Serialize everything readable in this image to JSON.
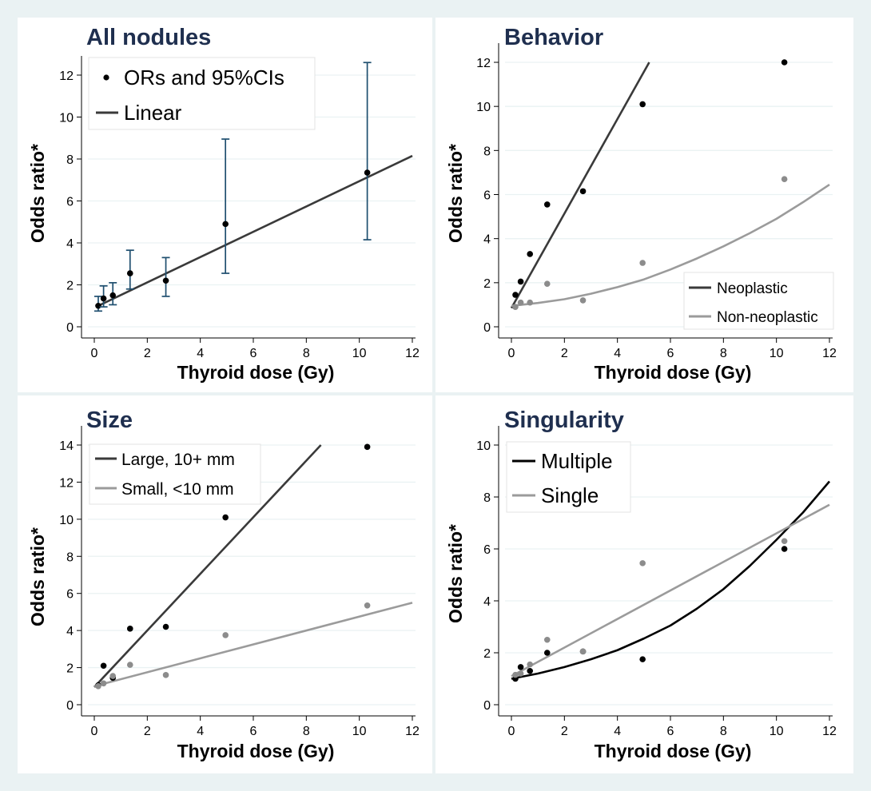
{
  "chart_data": [
    {
      "type": "scatter",
      "title": "All nodules",
      "xlabel": "Thyroid dose (Gy)",
      "ylabel": "Odds ratio*",
      "xlim": [
        0,
        12
      ],
      "ylim": [
        0,
        12
      ],
      "xticks": [
        "0",
        "2",
        "4",
        "6",
        "8",
        "10",
        "12"
      ],
      "yticks": [
        "0",
        "2",
        "4",
        "6",
        "8",
        "10",
        "12"
      ],
      "grid": true,
      "legend": "top-left",
      "series": [
        {
          "name": "ORs and 95%CIs",
          "kind": "points",
          "color": "#000000",
          "x": [
            0.15,
            0.35,
            0.7,
            1.35,
            2.7,
            4.95,
            10.3
          ],
          "y": [
            1.0,
            1.35,
            1.5,
            2.55,
            2.2,
            4.9,
            7.35
          ],
          "lower": [
            0.75,
            0.95,
            1.05,
            1.8,
            1.45,
            2.55,
            4.15
          ],
          "upper": [
            1.45,
            1.95,
            2.1,
            3.65,
            3.3,
            8.95,
            12.6
          ]
        },
        {
          "name": "Linear",
          "kind": "line",
          "color": "#3a3a3a",
          "x": [
            0.15,
            12.0
          ],
          "y": [
            1.0,
            8.15
          ]
        }
      ]
    },
    {
      "type": "scatter",
      "title": "Behavior",
      "xlabel": "Thyroid dose (Gy)",
      "ylabel": "Odds ratio*",
      "xlim": [
        0,
        12
      ],
      "ylim": [
        0,
        12
      ],
      "xticks": [
        "0",
        "2",
        "4",
        "6",
        "8",
        "10",
        "12"
      ],
      "yticks": [
        "0",
        "2",
        "4",
        "6",
        "8",
        "10",
        "12"
      ],
      "grid": true,
      "legend": "bottom-right",
      "series": [
        {
          "name": "Neoplastic",
          "kind": "line",
          "color": "#3a3a3a",
          "x": [
            0.0,
            5.2
          ],
          "y": [
            0.85,
            12.0
          ]
        },
        {
          "name": "Non-neoplastic",
          "kind": "curve",
          "color": "#9b9b9b",
          "x": [
            0,
            1,
            2,
            3,
            4,
            5,
            6,
            7,
            8,
            9,
            10,
            11,
            12
          ],
          "y": [
            0.95,
            1.08,
            1.25,
            1.5,
            1.8,
            2.15,
            2.6,
            3.1,
            3.65,
            4.25,
            4.9,
            5.65,
            6.45
          ]
        },
        {
          "name": "",
          "kind": "points",
          "color": "#000000",
          "x": [
            0.15,
            0.35,
            0.7,
            1.35,
            2.7,
            4.95,
            10.3
          ],
          "y": [
            1.45,
            2.05,
            3.3,
            5.55,
            6.15,
            10.1,
            12.0
          ]
        },
        {
          "name": "",
          "kind": "points",
          "color": "#8c8c8c",
          "x": [
            0.15,
            0.35,
            0.7,
            1.35,
            2.7,
            4.95,
            10.3
          ],
          "y": [
            0.9,
            1.1,
            1.1,
            1.95,
            1.2,
            2.9,
            6.7
          ]
        }
      ]
    },
    {
      "type": "scatter",
      "title": "Size",
      "xlabel": "Thyroid dose (Gy)",
      "ylabel": "Odds ratio*",
      "xlim": [
        0,
        12
      ],
      "ylim": [
        0,
        14
      ],
      "xticks": [
        "0",
        "2",
        "4",
        "6",
        "8",
        "10",
        "12"
      ],
      "yticks": [
        "0",
        "2",
        "4",
        "6",
        "8",
        "10",
        "12",
        "14"
      ],
      "grid": true,
      "legend": "top-left",
      "series": [
        {
          "name": "Large, 10+ mm",
          "kind": "line",
          "color": "#3a3a3a",
          "x": [
            0.0,
            8.55
          ],
          "y": [
            0.95,
            14.0
          ]
        },
        {
          "name": "Small, <10 mm",
          "kind": "line",
          "color": "#9b9b9b",
          "x": [
            0.0,
            12.0
          ],
          "y": [
            1.0,
            5.5
          ]
        },
        {
          "name": "",
          "kind": "points",
          "color": "#000000",
          "x": [
            0.15,
            0.35,
            0.7,
            1.35,
            2.7,
            4.95,
            10.3
          ],
          "y": [
            1.05,
            2.1,
            1.45,
            4.1,
            4.2,
            10.1,
            13.9
          ]
        },
        {
          "name": "",
          "kind": "points",
          "color": "#8c8c8c",
          "x": [
            0.15,
            0.35,
            0.7,
            1.35,
            2.7,
            4.95,
            10.3
          ],
          "y": [
            1.0,
            1.15,
            1.55,
            2.15,
            1.6,
            3.75,
            5.35
          ]
        }
      ]
    },
    {
      "type": "scatter",
      "title": "Singularity",
      "xlabel": "Thyroid dose (Gy)",
      "ylabel": "Odds ratio*",
      "xlim": [
        0,
        12
      ],
      "ylim": [
        0,
        10
      ],
      "xticks": [
        "0",
        "2",
        "4",
        "6",
        "8",
        "10",
        "12"
      ],
      "yticks": [
        "0",
        "2",
        "4",
        "6",
        "8",
        "10"
      ],
      "grid": true,
      "legend": "top-left",
      "series": [
        {
          "name": "Multiple",
          "kind": "curve",
          "color": "#000000",
          "x": [
            0,
            1,
            2,
            3,
            4,
            5,
            6,
            7,
            8,
            9,
            10,
            11,
            12
          ],
          "y": [
            1.0,
            1.2,
            1.45,
            1.75,
            2.1,
            2.55,
            3.05,
            3.7,
            4.45,
            5.35,
            6.35,
            7.4,
            8.6
          ]
        },
        {
          "name": "Single",
          "kind": "line",
          "color": "#9b9b9b",
          "x": [
            0.0,
            12.0
          ],
          "y": [
            1.1,
            7.7
          ]
        },
        {
          "name": "",
          "kind": "points",
          "color": "#000000",
          "x": [
            0.15,
            0.35,
            0.7,
            1.35,
            2.7,
            4.95,
            10.3
          ],
          "y": [
            1.0,
            1.45,
            1.3,
            2.0,
            2.05,
            1.75,
            6.0
          ]
        },
        {
          "name": "",
          "kind": "points",
          "color": "#8c8c8c",
          "x": [
            0.15,
            0.35,
            0.7,
            1.35,
            2.7,
            4.95,
            10.3
          ],
          "y": [
            1.15,
            1.2,
            1.55,
            2.5,
            2.05,
            5.45,
            6.3
          ]
        }
      ]
    }
  ]
}
